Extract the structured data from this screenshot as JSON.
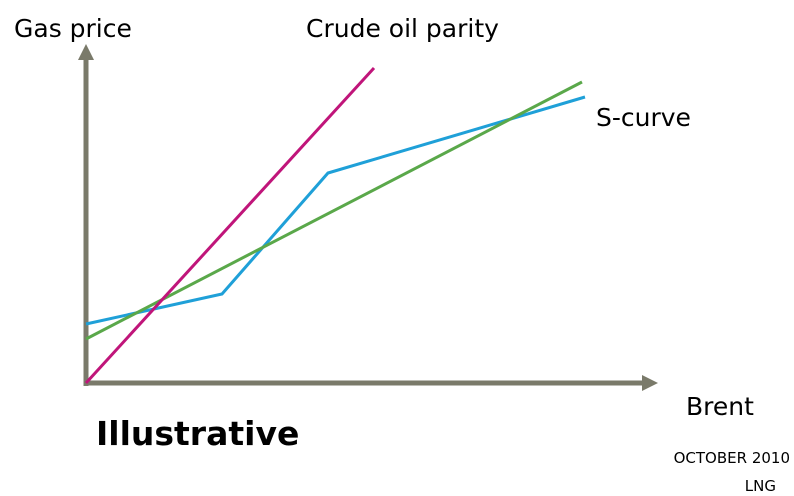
{
  "axis_labels": {
    "y": "Gas price",
    "x": "Brent"
  },
  "curve_labels": {
    "crude_oil_parity": "Crude oil parity",
    "s_curve": "S-curve"
  },
  "note": "Illustrative",
  "footer": {
    "date": "OCTOBER 2010",
    "topic": "LNG"
  }
}
